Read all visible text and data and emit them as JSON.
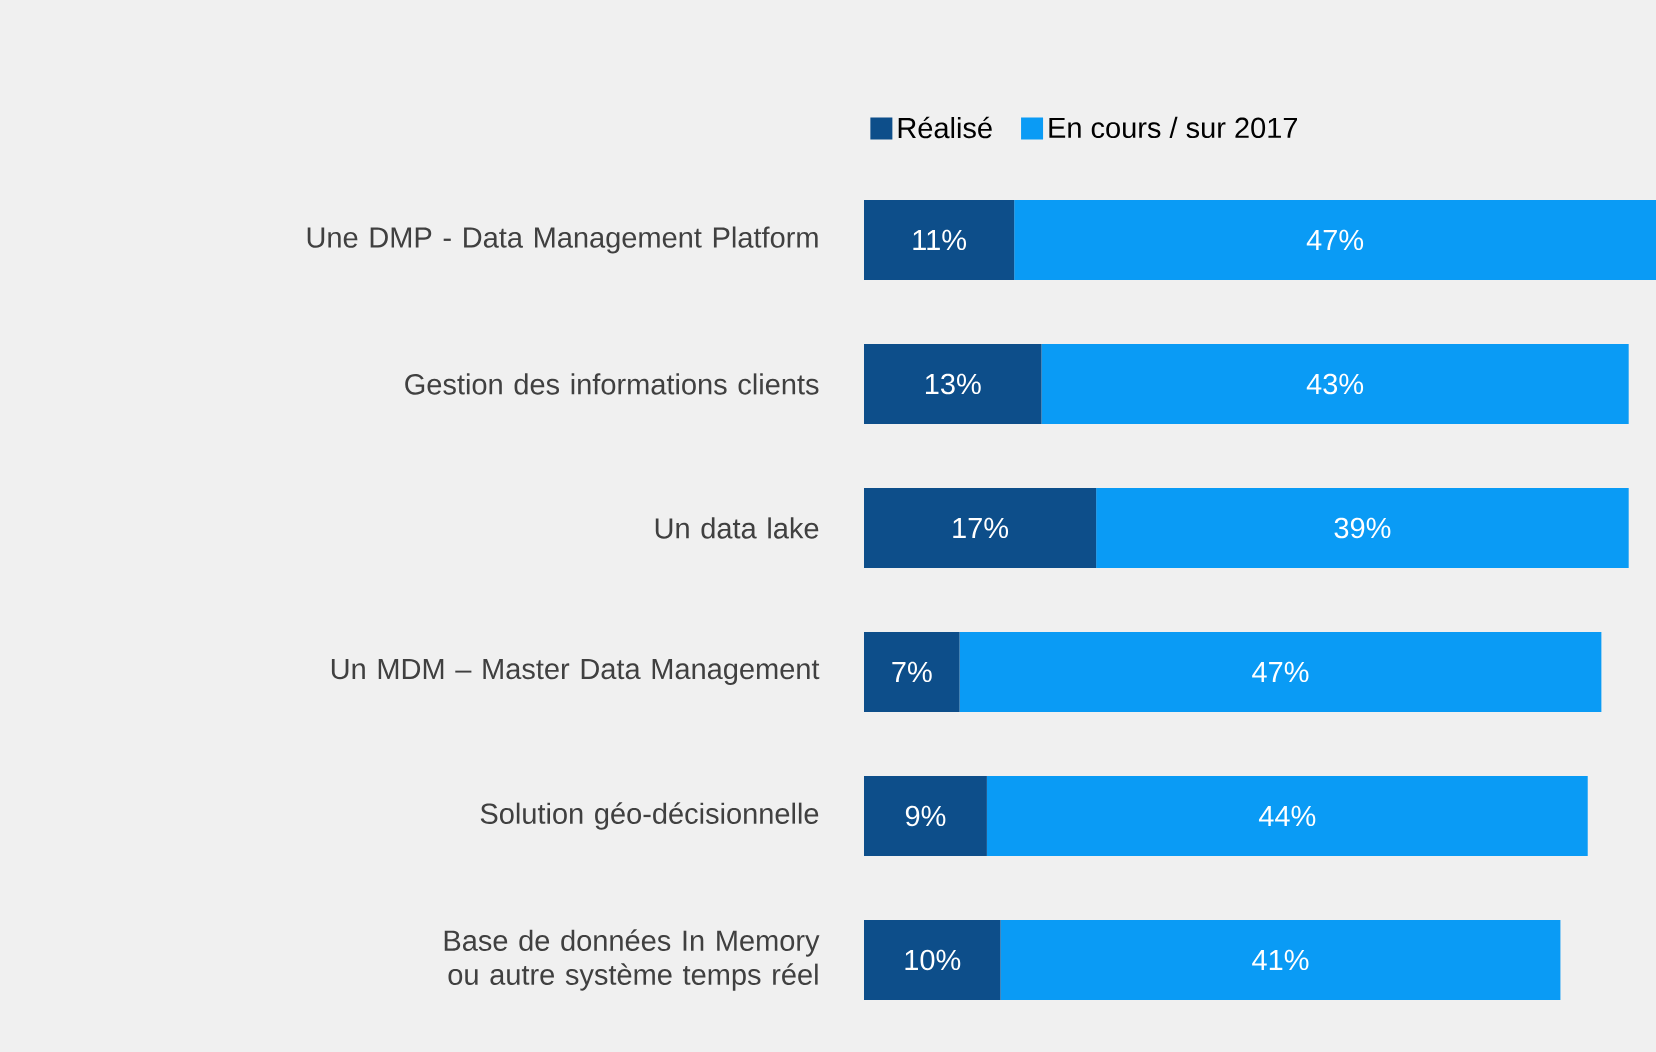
{
  "chart_data": {
    "type": "bar",
    "orientation": "horizontal",
    "stacked": true,
    "legend": "top",
    "categories": [
      "Une DMP - Data Management Platform",
      "Gestion des informations clients",
      "Un data lake",
      "Un MDM – Master Data Management",
      "Solution géo-décisionnelle",
      "Base de données In Memory ou autre système temps réel"
    ],
    "series": [
      {
        "name": "Réalisé",
        "color": "#0d4e8a",
        "values": [
          11,
          13,
          17,
          7,
          9,
          10
        ],
        "value_labels": [
          "11%",
          "13%",
          "17%",
          "7%",
          "9%",
          "10%"
        ]
      },
      {
        "name": "En cours / sur 2017",
        "color": "#0a9bf5",
        "values": [
          47,
          43,
          39,
          47,
          44,
          41
        ],
        "value_labels": [
          "47%",
          "43%",
          "39%",
          "47%",
          "44%",
          "41%"
        ]
      }
    ]
  }
}
